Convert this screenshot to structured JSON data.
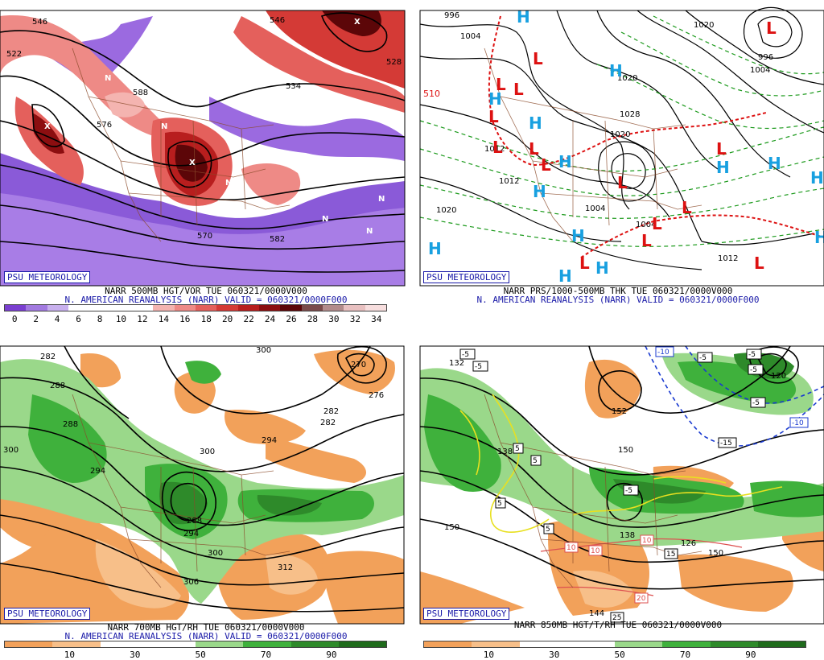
{
  "panels": [
    {
      "badge": "PSU METEOROLOGY",
      "caption1": "NARR 500MB HGT/VOR TUE 060321/0000V000",
      "caption2": "N. AMERICAN REANALYSIS (NARR) VALID = 060321/0000F000",
      "colorbar": {
        "colors": [
          "#7a3fd0",
          "#a27ae0",
          "#c8b0ee",
          "#ffffff",
          "#ffffff",
          "#ffffff",
          "#ffffff",
          "#f4b4b0",
          "#ee8a86",
          "#e4605c",
          "#d43a36",
          "#b81e1e",
          "#8c0e10",
          "#5c0608",
          "#7a4a4a",
          "#b28b8b",
          "#e8c0c0",
          "#f7dede"
        ],
        "ticks": [
          "0",
          "2",
          "4",
          "6",
          "8",
          "10",
          "12",
          "14",
          "16",
          "18",
          "20",
          "22",
          "24",
          "26",
          "28",
          "30",
          "32",
          "34"
        ]
      },
      "contour_labels": [
        "546",
        "576",
        "588",
        "570",
        "582",
        "534",
        "546",
        "528",
        "522",
        "546",
        "588"
      ],
      "marks": [
        "N",
        "N",
        "N",
        "N",
        "N",
        "N",
        "N",
        "X",
        "X",
        "X"
      ]
    },
    {
      "badge": "PSU METEOROLOGY",
      "caption1": "NARR PRS/1000-500MB THK TUE 060321/0000V000",
      "caption2": "N. AMERICAN REANALYSIS (NARR) VALID = 060321/0000F000",
      "contour_labels": [
        "996",
        "1004",
        "1020",
        "1028",
        "1020",
        "1012",
        "1004",
        "1012",
        "1020",
        "1004",
        "996",
        "1004",
        "1012",
        "1020"
      ],
      "thickness_label": "510",
      "highs": [
        "H",
        "H",
        "H",
        "H",
        "H",
        "H",
        "H",
        "H",
        "H",
        "H",
        "H",
        "H",
        "H",
        "H"
      ],
      "lows": [
        "L",
        "L",
        "L",
        "L",
        "L",
        "L",
        "L",
        "L",
        "L",
        "L",
        "L",
        "L",
        "L",
        "L",
        "L"
      ]
    },
    {
      "badge": "PSU METEOROLOGY",
      "caption1": "NARR 700MB HGT/RH TUE 060321/0000V000",
      "caption2": "N. AMERICAN REANALYSIS (NARR) VALID = 060321/0000F000",
      "colorbar": {
        "colors": [
          "#f2a15a",
          "#f7bf89",
          "#ffffff",
          "#ffffff",
          "#9ad88a",
          "#3fb13c",
          "#2e8a2a",
          "#1f6b1c"
        ],
        "ticks": [
          "10",
          "30",
          "50",
          "70",
          "90"
        ]
      },
      "contour_labels": [
        "282",
        "300",
        "270",
        "276",
        "288",
        "282",
        "288",
        "294",
        "300",
        "294",
        "288",
        "300",
        "306",
        "312",
        "294",
        "282"
      ]
    },
    {
      "badge": "PSU METEOROLOGY",
      "caption1": "NARR 850MB HGT/T/RH TUE 060321/0000V000",
      "colorbar": {
        "colors": [
          "#f2a15a",
          "#f7bf89",
          "#ffffff",
          "#ffffff",
          "#9ad88a",
          "#3fb13c",
          "#2e8a2a",
          "#1f6b1c"
        ],
        "ticks": [
          "10",
          "30",
          "50",
          "70",
          "90"
        ]
      },
      "contour_labels": [
        "120",
        "138",
        "150",
        "152",
        "150",
        "138",
        "150",
        "144",
        "126",
        "132"
      ],
      "temp_labels": [
        "-5",
        "-5",
        "-10",
        "-5",
        "-5",
        "-5",
        "-15",
        "-10",
        "5",
        "5",
        "5",
        "5",
        "-5",
        "10",
        "10",
        "10",
        "15",
        "20",
        "25",
        "-5"
      ]
    }
  ]
}
